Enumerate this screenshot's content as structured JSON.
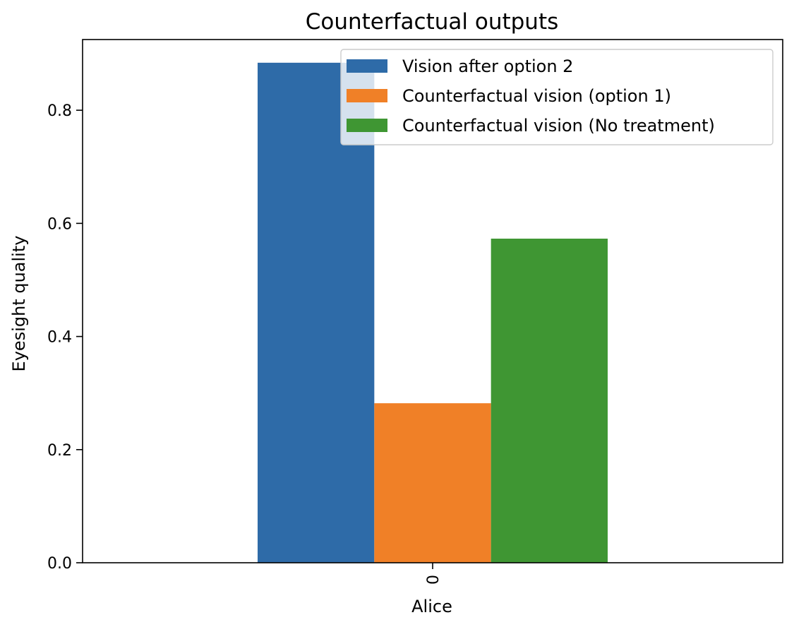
{
  "chart_data": {
    "type": "bar",
    "title": "Counterfactual outputs",
    "xlabel": "Alice",
    "ylabel": "Eyesight quality",
    "categories": [
      "0"
    ],
    "ylim": [
      0,
      0.925
    ],
    "yticks": [
      0.0,
      0.2,
      0.4,
      0.6,
      0.8
    ],
    "ytick_labels": [
      "0.0",
      "0.2",
      "0.4",
      "0.6",
      "0.8"
    ],
    "grid": false,
    "legend_position": "upper right",
    "series": [
      {
        "name": "Vision after option 2",
        "values": [
          0.884
        ],
        "color": "#2e6ba8"
      },
      {
        "name": "Counterfactual vision (option 1)",
        "values": [
          0.282
        ],
        "color": "#f08027"
      },
      {
        "name": "Counterfactual vision (No treatment)",
        "values": [
          0.573
        ],
        "color": "#3f9633"
      }
    ]
  }
}
